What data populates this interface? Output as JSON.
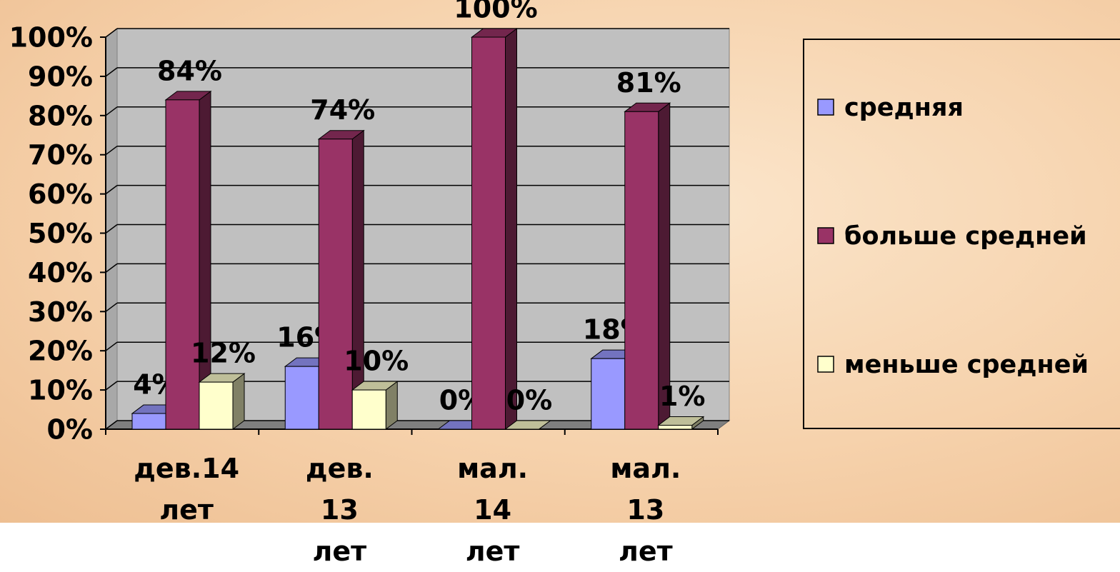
{
  "chart_data": {
    "type": "bar3d",
    "categories": [
      "дев.14 лет",
      "дев. 13 лет",
      "мал. 14 лет",
      "мал. 13 лет"
    ],
    "series": [
      {
        "name": "средняя",
        "color": "#9999ff",
        "values": [
          4,
          16,
          0,
          18
        ],
        "value_labels": [
          "4%",
          "16%",
          "0%",
          "18%"
        ]
      },
      {
        "name": "больше средней",
        "color": "#993366",
        "values": [
          84,
          74,
          100,
          81
        ],
        "value_labels": [
          "84%",
          "74%",
          "100%",
          "81%"
        ]
      },
      {
        "name": "меньше средней",
        "color": "#ffffcc",
        "values": [
          12,
          10,
          0,
          1
        ],
        "value_labels": [
          "12%",
          "10%",
          "0%",
          "1%"
        ]
      }
    ],
    "ylim": [
      0,
      100
    ],
    "yticks": [
      {
        "value": 0,
        "label": "0%"
      },
      {
        "value": 10,
        "label": "10%"
      },
      {
        "value": 20,
        "label": "20%"
      },
      {
        "value": 30,
        "label": "30%"
      },
      {
        "value": 40,
        "label": "40%"
      },
      {
        "value": 50,
        "label": "50%"
      },
      {
        "value": 60,
        "label": "60%"
      },
      {
        "value": 70,
        "label": "70%"
      },
      {
        "value": 80,
        "label": "80%"
      },
      {
        "value": 90,
        "label": "90%"
      },
      {
        "value": 100,
        "label": "100%"
      }
    ],
    "grid": true,
    "legend": "right"
  }
}
